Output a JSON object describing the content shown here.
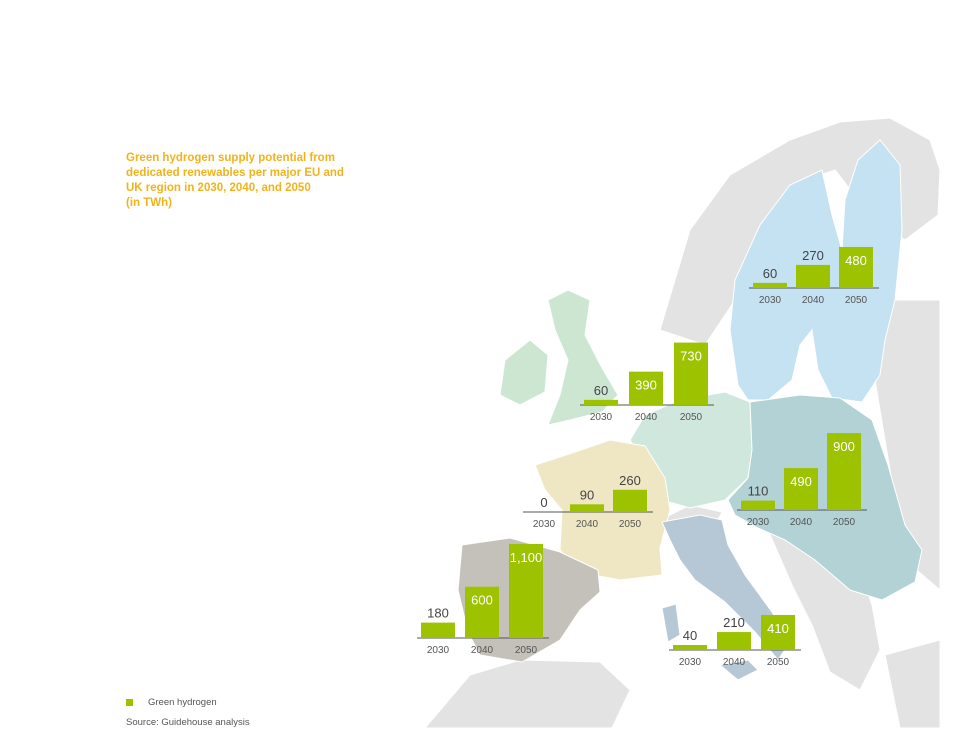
{
  "title_lines": [
    "Green hydrogen supply potential from",
    "dedicated renewables per major EU and",
    "UK region in 2030, 2040, and 2050",
    "(in TWh)"
  ],
  "legend": {
    "label": "Green hydrogen",
    "color": "#9dc300"
  },
  "source": "Source: Guidehouse analysis",
  "colors": {
    "bar": "#9dc300",
    "nordics": "#c4e2f2",
    "uk_ireland": "#cde6d2",
    "central": "#d0e7dd",
    "france": "#efe7c4",
    "iberia": "#c3c1ba",
    "italy": "#b6c7d6",
    "eastern": "#b2d2d6",
    "other_land": "#e3e3e3"
  },
  "chart_data": {
    "type": "bar",
    "unit": "TWh",
    "categories": [
      "2030",
      "2040",
      "2050"
    ],
    "regions": [
      {
        "id": "nordics",
        "values": [
          60,
          270,
          480
        ],
        "labels": [
          "60",
          "270",
          "480"
        ]
      },
      {
        "id": "uk-ireland",
        "values": [
          60,
          390,
          730
        ],
        "labels": [
          "60",
          "390",
          "730"
        ]
      },
      {
        "id": "france",
        "values": [
          0,
          90,
          260
        ],
        "labels": [
          "0",
          "90",
          "260"
        ]
      },
      {
        "id": "eastern-europe",
        "values": [
          110,
          490,
          900
        ],
        "labels": [
          "110",
          "490",
          "900"
        ]
      },
      {
        "id": "iberia",
        "values": [
          180,
          600,
          1100
        ],
        "labels": [
          "180",
          "600",
          "1,100"
        ]
      },
      {
        "id": "italy",
        "values": [
          40,
          210,
          410
        ],
        "labels": [
          "40",
          "210",
          "410"
        ]
      }
    ]
  }
}
